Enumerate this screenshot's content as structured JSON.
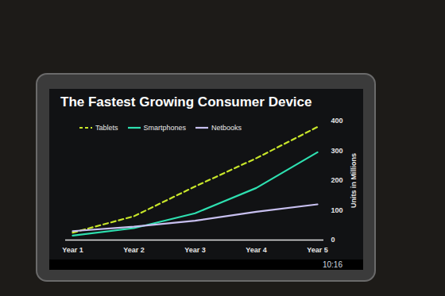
{
  "chart_data": {
    "type": "line",
    "title": "The Fastest Growing Consumer Device",
    "y_label": "Units in Millions",
    "categories": [
      "Year 1",
      "Year 2",
      "Year 3",
      "Year 4",
      "Year 5"
    ],
    "series": [
      {
        "name": "Tablets",
        "color": "#c8e62a",
        "line_style": "dashed",
        "values": [
          25,
          80,
          180,
          275,
          380
        ]
      },
      {
        "name": "Smartphones",
        "color": "#2ee0b0",
        "line_style": "solid",
        "values": [
          15,
          40,
          90,
          175,
          295
        ]
      },
      {
        "name": "Netbooks",
        "color": "#c8c0f0",
        "line_style": "solid",
        "values": [
          30,
          45,
          65,
          95,
          120
        ]
      }
    ],
    "ylim": [
      0,
      400
    ],
    "yticks": [
      0,
      100,
      200,
      300,
      400
    ],
    "grid": false,
    "legend": "top-left"
  },
  "status_bar": {
    "time": "10:16"
  }
}
